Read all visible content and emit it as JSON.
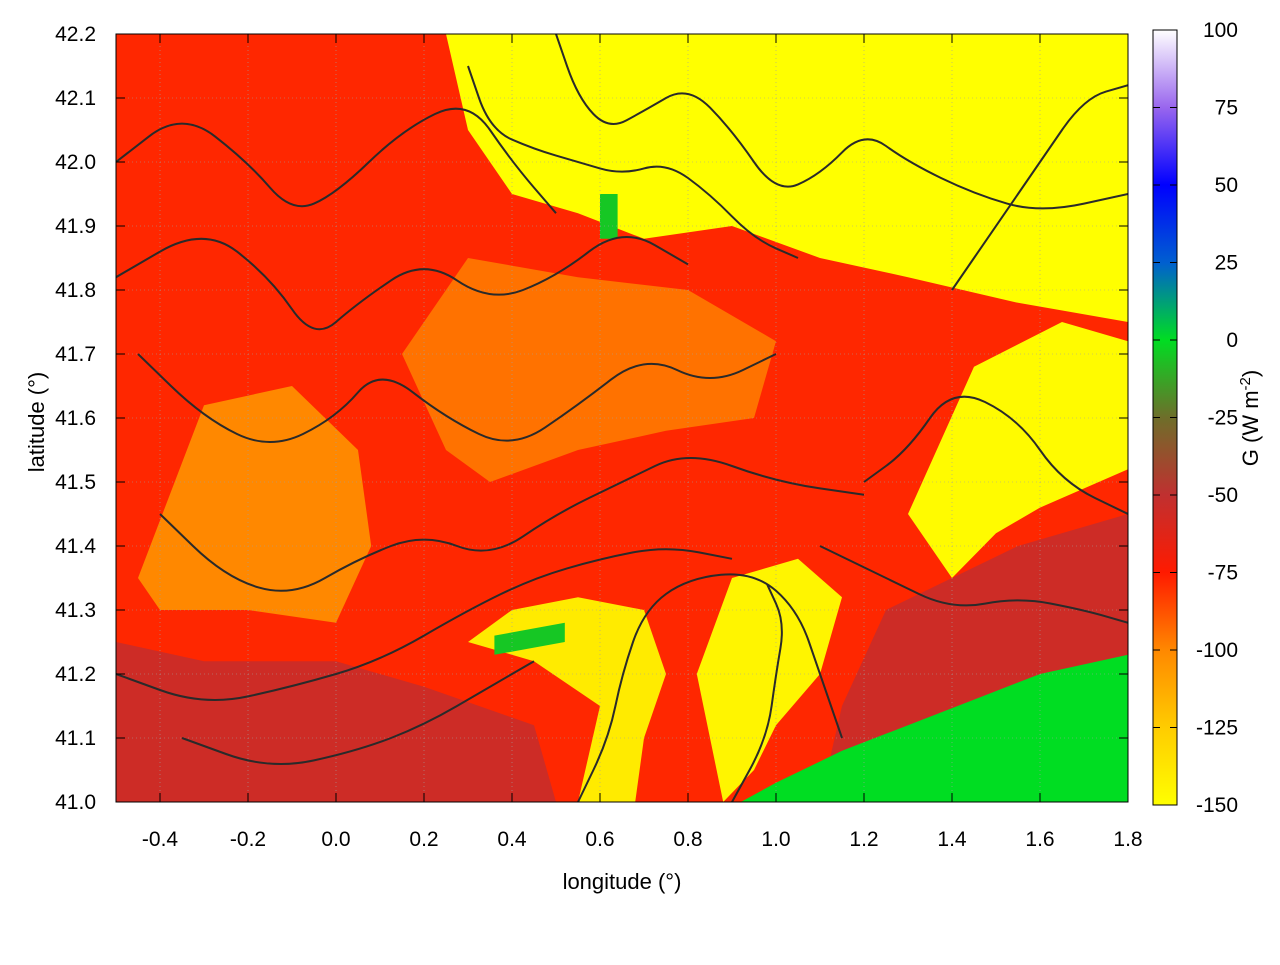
{
  "chart_data": {
    "type": "heatmap",
    "title": "",
    "xlabel": "longitude (°)",
    "ylabel": "latitude (°)",
    "xlim": [
      -0.5,
      1.8
    ],
    "ylim": [
      41.0,
      42.2
    ],
    "xticks": [
      -0.4,
      -0.2,
      0.0,
      0.2,
      0.4,
      0.6,
      0.8,
      1.0,
      1.2,
      1.4,
      1.6,
      1.8
    ],
    "xtick_labels": [
      "-0.4",
      "-0.2",
      "0.0",
      "0.2",
      "0.4",
      "0.6",
      "0.8",
      "1.0",
      "1.2",
      "1.4",
      "1.6",
      "1.8"
    ],
    "yticks": [
      41.0,
      41.1,
      41.2,
      41.3,
      41.4,
      41.5,
      41.6,
      41.7,
      41.8,
      41.9,
      42.0,
      42.1,
      42.2
    ],
    "ytick_labels": [
      "41.0",
      "41.1",
      "41.2",
      "41.3",
      "41.4",
      "41.5",
      "41.6",
      "41.7",
      "41.8",
      "41.9",
      "42.0",
      "42.1",
      "42.2"
    ],
    "grid": true,
    "colorbar": {
      "label": "G (W m-2)",
      "label_main": "G (W m",
      "label_sup": "-2",
      "label_end": ")",
      "range": [
        -150,
        100
      ],
      "ticks": [
        100,
        75,
        50,
        25,
        0,
        -25,
        -50,
        -75,
        -100,
        -125,
        -150
      ],
      "tick_labels": [
        "100",
        "75",
        "50",
        "25",
        "0",
        "-25",
        "-50",
        "-75",
        "-100",
        "-125",
        "-150"
      ],
      "stops": [
        {
          "value": -150,
          "color": "#ffff00"
        },
        {
          "value": -125,
          "color": "#ffcc00"
        },
        {
          "value": -100,
          "color": "#ff8800"
        },
        {
          "value": -75,
          "color": "#ff1a00"
        },
        {
          "value": -50,
          "color": "#c03030"
        },
        {
          "value": -25,
          "color": "#6e6e2a"
        },
        {
          "value": 0,
          "color": "#00dd22"
        },
        {
          "value": 25,
          "color": "#005fd0"
        },
        {
          "value": 50,
          "color": "#0000ff"
        },
        {
          "value": 75,
          "color": "#9966ee"
        },
        {
          "value": 100,
          "color": "#ffffff"
        }
      ]
    },
    "regions": [
      {
        "name": "background",
        "value": -78,
        "polygon": [
          [
            -0.5,
            41.0
          ],
          [
            1.8,
            41.0
          ],
          [
            1.8,
            42.2
          ],
          [
            -0.5,
            42.2
          ]
        ]
      },
      {
        "name": "north-east-yellow",
        "value": -150,
        "polygon": [
          [
            0.25,
            42.2
          ],
          [
            1.8,
            42.2
          ],
          [
            1.8,
            41.75
          ],
          [
            1.55,
            41.78
          ],
          [
            1.3,
            41.82
          ],
          [
            1.1,
            41.85
          ],
          [
            0.9,
            41.9
          ],
          [
            0.7,
            41.88
          ],
          [
            0.55,
            41.92
          ],
          [
            0.4,
            41.95
          ],
          [
            0.3,
            42.05
          ]
        ]
      },
      {
        "name": "east-mid-yellow",
        "value": -148,
        "polygon": [
          [
            1.3,
            41.45
          ],
          [
            1.45,
            41.68
          ],
          [
            1.65,
            41.75
          ],
          [
            1.8,
            41.72
          ],
          [
            1.8,
            41.52
          ],
          [
            1.6,
            41.46
          ],
          [
            1.5,
            41.42
          ],
          [
            1.4,
            41.35
          ]
        ]
      },
      {
        "name": "central-south-yellow",
        "value": -145,
        "polygon": [
          [
            0.82,
            41.2
          ],
          [
            0.9,
            41.35
          ],
          [
            1.05,
            41.38
          ],
          [
            1.15,
            41.32
          ],
          [
            1.1,
            41.2
          ],
          [
            1.0,
            41.12
          ],
          [
            0.95,
            41.05
          ],
          [
            0.88,
            41.0
          ],
          [
            0.85,
            41.1
          ]
        ]
      },
      {
        "name": "river-yellow",
        "value": -140,
        "polygon": [
          [
            0.3,
            41.25
          ],
          [
            0.4,
            41.3
          ],
          [
            0.55,
            41.32
          ],
          [
            0.7,
            41.3
          ],
          [
            0.75,
            41.2
          ],
          [
            0.7,
            41.1
          ],
          [
            0.68,
            41.0
          ],
          [
            0.55,
            41.0
          ],
          [
            0.6,
            41.15
          ],
          [
            0.45,
            41.22
          ]
        ]
      },
      {
        "name": "west-orange",
        "value": -100,
        "polygon": [
          [
            -0.45,
            41.35
          ],
          [
            -0.3,
            41.62
          ],
          [
            -0.1,
            41.65
          ],
          [
            0.05,
            41.55
          ],
          [
            0.08,
            41.4
          ],
          [
            0.0,
            41.28
          ],
          [
            -0.2,
            41.3
          ],
          [
            -0.4,
            41.3
          ]
        ]
      },
      {
        "name": "central-orange",
        "value": -95,
        "polygon": [
          [
            0.15,
            41.7
          ],
          [
            0.3,
            41.85
          ],
          [
            0.55,
            41.82
          ],
          [
            0.8,
            41.8
          ],
          [
            1.0,
            41.72
          ],
          [
            0.95,
            41.6
          ],
          [
            0.75,
            41.58
          ],
          [
            0.55,
            41.55
          ],
          [
            0.35,
            41.5
          ],
          [
            0.25,
            41.55
          ]
        ]
      },
      {
        "name": "south-west-dark",
        "value": -55,
        "polygon": [
          [
            -0.5,
            41.0
          ],
          [
            0.5,
            41.0
          ],
          [
            0.45,
            41.12
          ],
          [
            0.2,
            41.18
          ],
          [
            0.0,
            41.22
          ],
          [
            -0.3,
            41.22
          ],
          [
            -0.5,
            41.25
          ]
        ]
      },
      {
        "name": "south-east-dark",
        "value": -55,
        "polygon": [
          [
            1.1,
            41.0
          ],
          [
            1.8,
            41.0
          ],
          [
            1.8,
            41.45
          ],
          [
            1.55,
            41.4
          ],
          [
            1.4,
            41.35
          ],
          [
            1.25,
            41.3
          ],
          [
            1.15,
            41.15
          ]
        ]
      },
      {
        "name": "sea-green",
        "value": 0,
        "polygon": [
          [
            0.92,
            41.0
          ],
          [
            1.8,
            41.0
          ],
          [
            1.8,
            41.23
          ],
          [
            1.6,
            41.2
          ],
          [
            1.45,
            41.16
          ],
          [
            1.3,
            41.12
          ],
          [
            1.15,
            41.08
          ],
          [
            1.0,
            41.03
          ]
        ]
      },
      {
        "name": "north-green-patch",
        "value": -5,
        "polygon": [
          [
            0.6,
            41.88
          ],
          [
            0.64,
            41.88
          ],
          [
            0.64,
            41.95
          ],
          [
            0.6,
            41.95
          ]
        ]
      },
      {
        "name": "mid-green-patch",
        "value": -5,
        "polygon": [
          [
            0.36,
            41.23
          ],
          [
            0.52,
            41.25
          ],
          [
            0.52,
            41.28
          ],
          [
            0.36,
            41.26
          ]
        ]
      }
    ],
    "contours": [
      [
        [
          -0.5,
          42.0
        ],
        [
          -0.35,
          42.08
        ],
        [
          -0.2,
          42.0
        ],
        [
          -0.1,
          41.92
        ],
        [
          0.0,
          41.95
        ],
        [
          0.15,
          42.05
        ],
        [
          0.3,
          42.1
        ],
        [
          0.4,
          42.0
        ],
        [
          0.5,
          41.92
        ]
      ],
      [
        [
          -0.5,
          41.82
        ],
        [
          -0.3,
          41.9
        ],
        [
          -0.15,
          41.82
        ],
        [
          -0.05,
          41.72
        ],
        [
          0.05,
          41.78
        ],
        [
          0.2,
          41.85
        ],
        [
          0.35,
          41.78
        ],
        [
          0.5,
          41.82
        ],
        [
          0.65,
          41.9
        ],
        [
          0.8,
          41.84
        ]
      ],
      [
        [
          -0.45,
          41.7
        ],
        [
          -0.3,
          41.6
        ],
        [
          -0.15,
          41.55
        ],
        [
          0.0,
          41.6
        ],
        [
          0.1,
          41.68
        ],
        [
          0.25,
          41.6
        ],
        [
          0.4,
          41.55
        ],
        [
          0.55,
          41.62
        ],
        [
          0.7,
          41.7
        ],
        [
          0.85,
          41.65
        ],
        [
          1.0,
          41.7
        ]
      ],
      [
        [
          -0.4,
          41.45
        ],
        [
          -0.25,
          41.35
        ],
        [
          -0.1,
          41.32
        ],
        [
          0.05,
          41.38
        ],
        [
          0.2,
          41.42
        ],
        [
          0.35,
          41.38
        ],
        [
          0.5,
          41.45
        ],
        [
          0.65,
          41.5
        ],
        [
          0.8,
          41.55
        ],
        [
          1.0,
          41.5
        ],
        [
          1.2,
          41.48
        ]
      ],
      [
        [
          -0.5,
          41.2
        ],
        [
          -0.3,
          41.15
        ],
        [
          -0.1,
          41.18
        ],
        [
          0.1,
          41.22
        ],
        [
          0.3,
          41.3
        ],
        [
          0.45,
          41.35
        ],
        [
          0.6,
          41.38
        ],
        [
          0.75,
          41.4
        ],
        [
          0.9,
          41.38
        ]
      ],
      [
        [
          -0.35,
          41.1
        ],
        [
          -0.15,
          41.05
        ],
        [
          0.05,
          41.08
        ],
        [
          0.2,
          41.12
        ],
        [
          0.35,
          41.18
        ],
        [
          0.45,
          41.22
        ]
      ],
      [
        [
          0.55,
          41.0
        ],
        [
          0.62,
          41.1
        ],
        [
          0.65,
          41.2
        ],
        [
          0.7,
          41.3
        ],
        [
          0.8,
          41.35
        ],
        [
          0.95,
          41.36
        ],
        [
          1.05,
          41.3
        ],
        [
          1.1,
          41.2
        ],
        [
          1.15,
          41.1
        ]
      ],
      [
        [
          0.9,
          41.0
        ],
        [
          0.98,
          41.1
        ],
        [
          1.0,
          41.2
        ],
        [
          1.02,
          41.28
        ],
        [
          0.98,
          41.34
        ]
      ],
      [
        [
          1.2,
          41.5
        ],
        [
          1.3,
          41.55
        ],
        [
          1.4,
          41.65
        ],
        [
          1.55,
          41.6
        ],
        [
          1.65,
          41.5
        ],
        [
          1.8,
          41.45
        ]
      ],
      [
        [
          1.1,
          41.4
        ],
        [
          1.25,
          41.35
        ],
        [
          1.4,
          41.3
        ],
        [
          1.55,
          41.32
        ],
        [
          1.7,
          41.3
        ],
        [
          1.8,
          41.28
        ]
      ],
      [
        [
          0.5,
          42.2
        ],
        [
          0.55,
          42.1
        ],
        [
          0.62,
          42.05
        ],
        [
          0.7,
          42.08
        ],
        [
          0.8,
          42.12
        ],
        [
          0.9,
          42.05
        ],
        [
          1.0,
          41.95
        ],
        [
          1.1,
          41.98
        ],
        [
          1.2,
          42.05
        ],
        [
          1.3,
          42.0
        ],
        [
          1.45,
          41.95
        ],
        [
          1.6,
          41.92
        ],
        [
          1.8,
          41.95
        ]
      ],
      [
        [
          0.3,
          42.15
        ],
        [
          0.35,
          42.05
        ],
        [
          0.45,
          42.02
        ],
        [
          0.55,
          42.0
        ],
        [
          0.65,
          41.98
        ],
        [
          0.75,
          42.0
        ],
        [
          0.85,
          41.95
        ],
        [
          0.95,
          41.88
        ],
        [
          1.05,
          41.85
        ]
      ],
      [
        [
          1.4,
          41.8
        ],
        [
          1.5,
          41.9
        ],
        [
          1.6,
          42.0
        ],
        [
          1.7,
          42.1
        ],
        [
          1.8,
          42.12
        ]
      ]
    ]
  }
}
